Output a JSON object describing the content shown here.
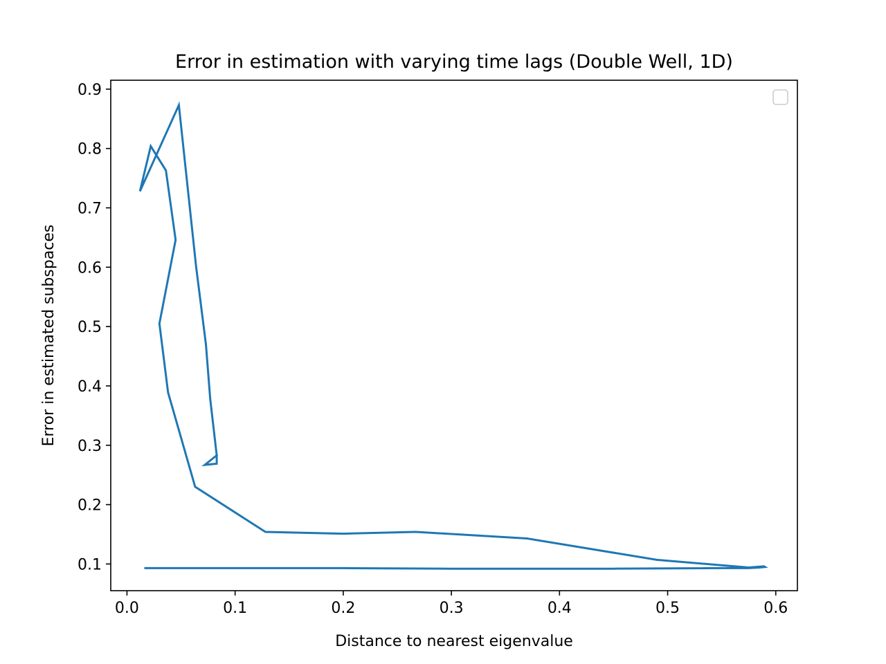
{
  "chart_data": {
    "type": "line",
    "title": "Error in estimation with varying time lags (Double Well, 1D)",
    "xlabel": "Distance to nearest eigenvalue",
    "ylabel": "Error in estimated subspaces",
    "xlim": [
      -0.015,
      0.62
    ],
    "ylim": [
      0.055,
      0.915
    ],
    "xticks": [
      0.0,
      0.1,
      0.2,
      0.3,
      0.4,
      0.5,
      0.6
    ],
    "xtick_labels": [
      "0.0",
      "0.1",
      "0.2",
      "0.3",
      "0.4",
      "0.5",
      "0.6"
    ],
    "yticks": [
      0.1,
      0.2,
      0.3,
      0.4,
      0.5,
      0.6,
      0.7,
      0.8,
      0.9
    ],
    "ytick_labels": [
      "0.1",
      "0.2",
      "0.3",
      "0.4",
      "0.5",
      "0.6",
      "0.7",
      "0.8",
      "0.9"
    ],
    "grid": false,
    "legend": {
      "location": "upper right",
      "entries": []
    },
    "series": [
      {
        "color": "#1f77b4",
        "x": [
          0.017,
          0.1,
          0.2,
          0.3,
          0.38,
          0.45,
          0.55,
          0.575,
          0.585,
          0.59,
          0.589,
          0.575,
          0.49,
          0.37,
          0.267,
          0.2,
          0.128,
          0.063,
          0.038,
          0.03,
          0.045,
          0.036,
          0.022,
          0.012,
          0.048,
          0.064,
          0.073,
          0.077,
          0.083,
          0.083,
          0.072,
          0.083
        ],
        "y": [
          0.093,
          0.093,
          0.093,
          0.092,
          0.092,
          0.092,
          0.093,
          0.093,
          0.094,
          0.095,
          0.096,
          0.094,
          0.107,
          0.143,
          0.154,
          0.151,
          0.154,
          0.23,
          0.389,
          0.505,
          0.646,
          0.763,
          0.804,
          0.728,
          0.873,
          0.6,
          0.47,
          0.378,
          0.283,
          0.269,
          0.267,
          0.283
        ]
      }
    ]
  }
}
